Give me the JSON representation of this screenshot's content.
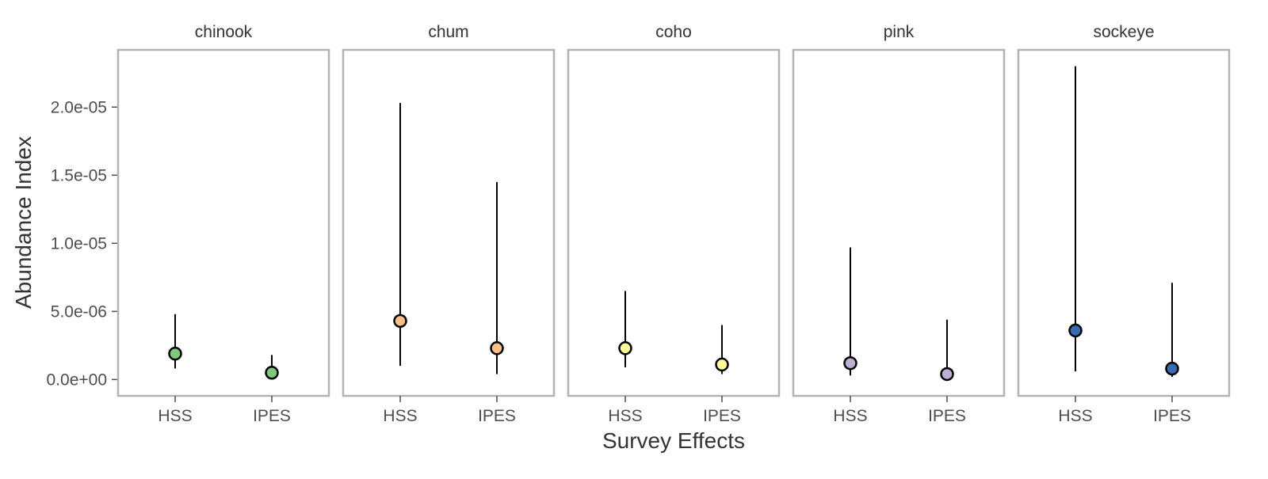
{
  "chart_data": {
    "type": "scatter",
    "subtype": "pointrange-faceted",
    "xlabel": "Survey Effects",
    "ylabel": "Abundance Index",
    "ylim": [
      -1.2e-06,
      2.42e-05
    ],
    "y_ticks": [
      0,
      5e-06,
      1e-05,
      1.5e-05,
      2e-05
    ],
    "y_tick_labels": [
      "0.0e+00",
      "5.0e-06",
      "1.0e-05",
      "1.5e-05",
      "2.0e-05"
    ],
    "categories": [
      "HSS",
      "IPES"
    ],
    "grid": false,
    "legend": "none",
    "facets": [
      {
        "name": "chinook",
        "color": "#7fc97f",
        "points": [
          {
            "x": "HSS",
            "y": 1.9e-06,
            "lower": 8.1e-07,
            "upper": 4.8e-06
          },
          {
            "x": "IPES",
            "y": 5e-07,
            "lower": 1.8e-07,
            "upper": 1.8e-06
          }
        ]
      },
      {
        "name": "chum",
        "color": "#fdc086",
        "points": [
          {
            "x": "HSS",
            "y": 4.3e-06,
            "lower": 1e-06,
            "upper": 2.03e-05
          },
          {
            "x": "IPES",
            "y": 2.3e-06,
            "lower": 4e-07,
            "upper": 1.45e-05
          }
        ]
      },
      {
        "name": "coho",
        "color": "#ffff99",
        "points": [
          {
            "x": "HSS",
            "y": 2.3e-06,
            "lower": 9e-07,
            "upper": 6.5e-06
          },
          {
            "x": "IPES",
            "y": 1.1e-06,
            "lower": 4e-07,
            "upper": 4e-06
          }
        ]
      },
      {
        "name": "pink",
        "color": "#beaed4",
        "points": [
          {
            "x": "HSS",
            "y": 1.2e-06,
            "lower": 3e-07,
            "upper": 9.7e-06
          },
          {
            "x": "IPES",
            "y": 4e-07,
            "lower": 1e-07,
            "upper": 4.4e-06
          }
        ]
      },
      {
        "name": "sockeye",
        "color": "#386cb0",
        "points": [
          {
            "x": "HSS",
            "y": 3.6e-06,
            "lower": 6e-07,
            "upper": 2.3e-05
          },
          {
            "x": "IPES",
            "y": 8e-07,
            "lower": 2e-07,
            "upper": 7.1e-06
          }
        ]
      }
    ]
  }
}
